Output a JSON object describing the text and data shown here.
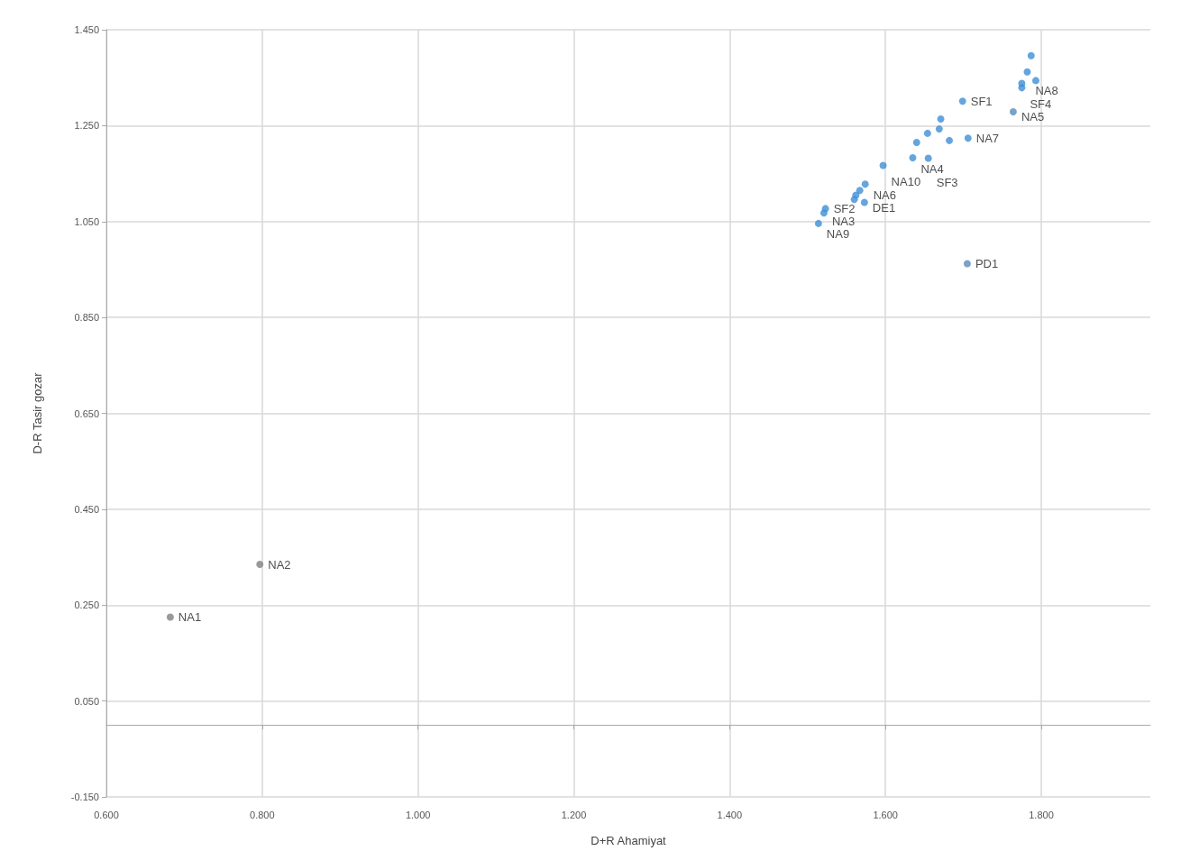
{
  "chart_data": {
    "type": "scatter",
    "xlabel": "D+R Ahamiyat",
    "ylabel": "D-R Tasir gozar",
    "x": [
      1.787,
      1.782,
      1.793,
      1.775,
      1.775,
      1.699,
      1.764,
      1.671,
      1.669,
      1.654,
      1.682,
      1.706,
      1.64,
      1.635,
      1.655,
      1.597,
      1.574,
      1.567,
      1.562,
      1.573,
      1.56,
      1.523,
      1.521,
      1.514,
      1.705,
      0.797,
      0.682
    ],
    "values": [
      1.396,
      1.362,
      1.344,
      1.338,
      1.329,
      1.301,
      1.279,
      1.264,
      1.243,
      1.234,
      1.219,
      1.224,
      1.215,
      1.183,
      1.182,
      1.167,
      1.128,
      1.115,
      1.105,
      1.09,
      1.096,
      1.077,
      1.068,
      1.046,
      0.962,
      0.335,
      0.225
    ],
    "colors": [
      "#3f8fd6",
      "#3f8fd6",
      "#3f8fd6",
      "#3f8fd6",
      "#3f8fd6",
      "#3f8fd6",
      "#5b8bb8",
      "#3f8fd6",
      "#3f8fd6",
      "#3f8fd6",
      "#3f8fd6",
      "#3f8fd6",
      "#3f8fd6",
      "#3f8fd6",
      "#3f8fd6",
      "#3f8fd6",
      "#3f8fd6",
      "#3f8fd6",
      "#3f8fd6",
      "#3f8fd6",
      "#3f8fd6",
      "#3f8fd6",
      "#3f8fd6",
      "#3f8fd6",
      "#5b8bb8",
      "#7f7f7f",
      "#7f7f7f"
    ],
    "annotations": [
      {
        "text": "NA8",
        "x": 1.782,
        "y": 1.362
      },
      {
        "text": "SF4",
        "x": 1.775,
        "y": 1.329
      },
      {
        "text": "SF1",
        "x": 1.699,
        "y": 1.301
      },
      {
        "text": "NA5",
        "x": 1.764,
        "y": 1.279
      },
      {
        "text": "NA7",
        "x": 1.706,
        "y": 1.224
      },
      {
        "text": "NA4",
        "x": 1.635,
        "y": 1.183
      },
      {
        "text": "SF3",
        "x": 1.655,
        "y": 1.182
      },
      {
        "text": "NA10",
        "x": 1.597,
        "y": 1.167
      },
      {
        "text": "NA6",
        "x": 1.574,
        "y": 1.128
      },
      {
        "text": "DE1",
        "x": 1.573,
        "y": 1.09
      },
      {
        "text": "SF2",
        "x": 1.523,
        "y": 1.077
      },
      {
        "text": "NA3",
        "x": 1.521,
        "y": 1.068
      },
      {
        "text": "NA9",
        "x": 1.514,
        "y": 1.046
      },
      {
        "text": "PD1",
        "x": 1.705,
        "y": 0.962
      },
      {
        "text": "NA2",
        "x": 0.797,
        "y": 0.335
      },
      {
        "text": "NA1",
        "x": 0.682,
        "y": 0.225
      }
    ],
    "xlim": [
      0.6,
      1.94
    ],
    "xticks": [
      {
        "value": 0.6,
        "label": "0.600"
      },
      {
        "value": 0.8,
        "label": "0.800"
      },
      {
        "value": 1.0,
        "label": "1.000"
      },
      {
        "value": 1.2,
        "label": "1.200"
      },
      {
        "value": 1.4,
        "label": "1.400"
      },
      {
        "value": 1.6,
        "label": "1.600"
      },
      {
        "value": 1.8,
        "label": "1.800"
      }
    ],
    "ylim": [
      -0.15,
      1.45
    ],
    "yticks": [
      {
        "value": -0.15,
        "label": "-0.150"
      },
      {
        "value": 0.05,
        "label": "0.050"
      },
      {
        "value": 0.25,
        "label": "0.250"
      },
      {
        "value": 0.45,
        "label": "0.450"
      },
      {
        "value": 0.65,
        "label": "0.650"
      },
      {
        "value": 0.85,
        "label": "0.850"
      },
      {
        "value": 1.05,
        "label": "1.050"
      },
      {
        "value": 1.25,
        "label": "1.250"
      },
      {
        "value": 1.45,
        "label": "1.450"
      }
    ],
    "grid": true,
    "marker": "circle"
  }
}
